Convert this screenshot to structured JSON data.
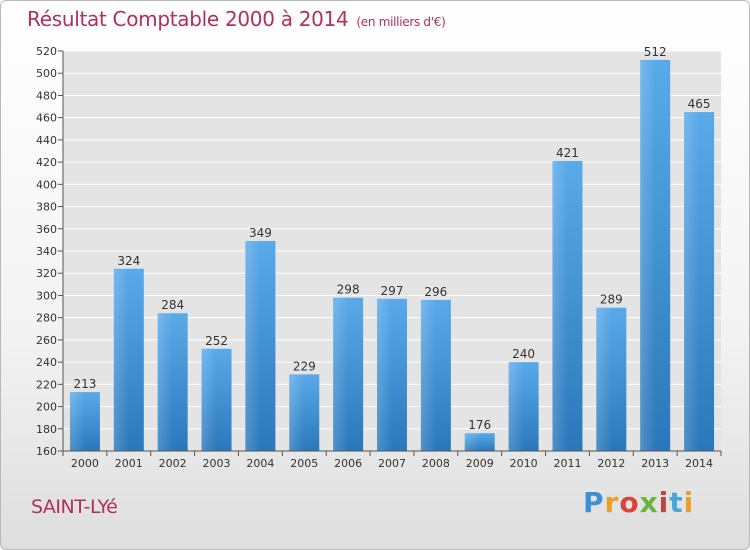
{
  "header": {
    "title": "Résultat Comptable 2000 à 2014",
    "subtitle": "(en milliers d'€)"
  },
  "footer": {
    "commune": "SAINT-LYé",
    "brand": "Proxiti"
  },
  "colors": {
    "title": "#b0305a",
    "bar_top": "#5aaaea",
    "bar_bottom": "#2a78bb",
    "grid": "#ffffff",
    "plot_bg": "#e4e4e4"
  },
  "chart_data": {
    "type": "bar",
    "title": "Résultat Comptable 2000 à 2014",
    "subtitle": "(en milliers d'€)",
    "xlabel": "",
    "ylabel": "",
    "categories": [
      "2000",
      "2001",
      "2002",
      "2003",
      "2004",
      "2005",
      "2006",
      "2007",
      "2008",
      "2009",
      "2010",
      "2011",
      "2012",
      "2013",
      "2014"
    ],
    "values": [
      213,
      324,
      284,
      252,
      349,
      229,
      298,
      297,
      296,
      176,
      240,
      421,
      289,
      512,
      465
    ],
    "ylim": [
      160,
      520
    ],
    "yticks": [
      160,
      180,
      200,
      220,
      240,
      260,
      280,
      300,
      320,
      340,
      360,
      380,
      400,
      420,
      440,
      460,
      480,
      500,
      520
    ],
    "grid": true,
    "data_labels": true
  }
}
